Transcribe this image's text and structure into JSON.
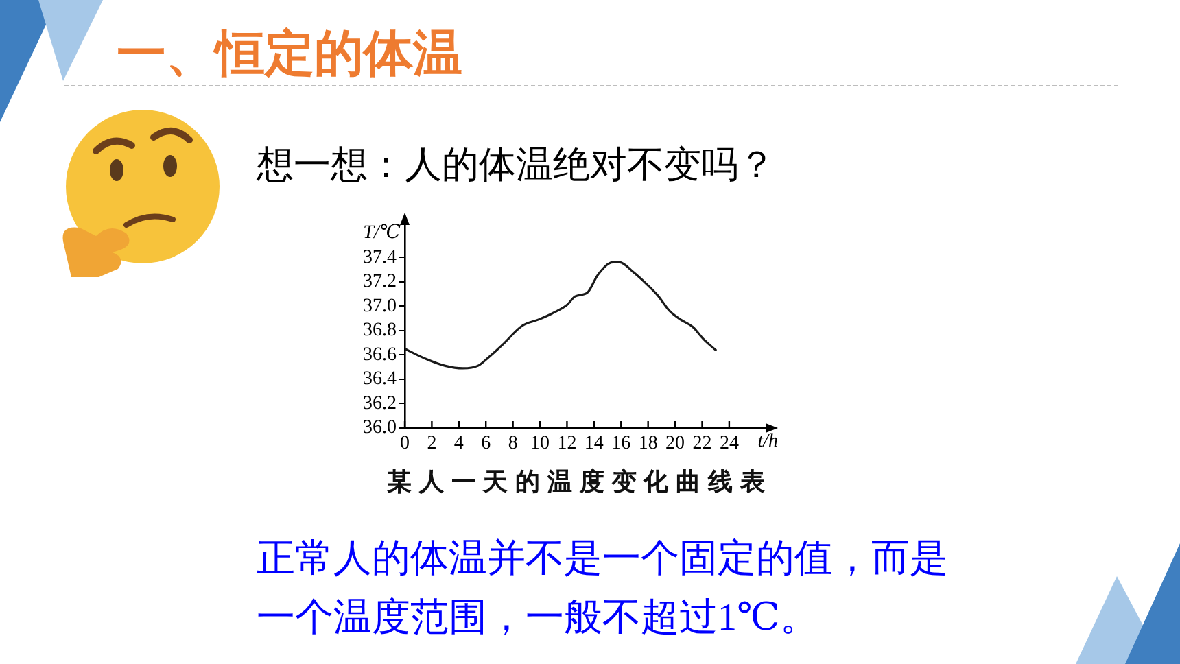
{
  "chart_data": {
    "type": "line",
    "title": "一、恒定的体温",
    "subtitle": "想一想：人的体温绝对不变吗？",
    "xlabel": "t/h",
    "ylabel": "T/℃",
    "annotations": [
      "某人一天的温度变化曲线表",
      "正常人的体温并不是一个固定的值，而是一个温度范围，一般不超过1℃。"
    ],
    "x": [
      0,
      1.5,
      3.0,
      4.3,
      5.4,
      6.2,
      7.2,
      8.7,
      9.9,
      10.9,
      12.0,
      12.6,
      13.5,
      14.3,
      15.4,
      15.9,
      16.9,
      17.9,
      18.7,
      19.6,
      20.4,
      21.3,
      22.1,
      23.0
    ],
    "series": [
      {
        "color": "#1a1a1a",
        "values": [
          36.65,
          36.57,
          36.51,
          36.49,
          36.51,
          36.58,
          36.68,
          36.84,
          36.89,
          36.94,
          37.01,
          37.08,
          37.11,
          37.26,
          37.36,
          37.36,
          37.28,
          37.18,
          37.09,
          36.96,
          36.89,
          36.83,
          36.73,
          36.64
        ]
      }
    ],
    "xlim": [
      0,
      27
    ],
    "xticks": [
      0,
      2,
      4,
      6,
      8,
      10,
      12,
      14,
      16,
      18,
      20,
      22,
      24
    ],
    "ylim": [
      36,
      37.7
    ],
    "yticks": [
      {
        "value": 36,
        "label": "36.0"
      },
      36.2,
      36.4,
      36.6,
      36.8,
      {
        "value": 37,
        "label": "37.0"
      },
      37.2,
      37.4
    ],
    "grid": false,
    "legend": false,
    "marker": "none",
    "line_style": "solid"
  }
}
